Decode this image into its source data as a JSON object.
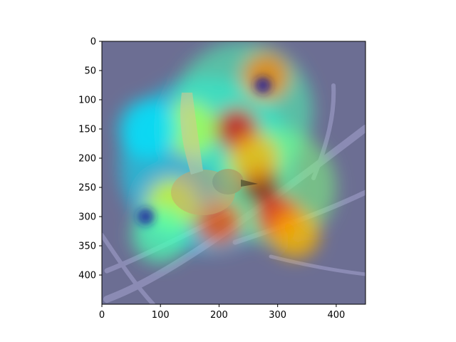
{
  "chart_data": {
    "type": "heatmap",
    "title": "",
    "xlabel": "",
    "ylabel": "",
    "xlim": [
      0,
      450
    ],
    "ylim": [
      450,
      0
    ],
    "x_ticks": [
      0,
      100,
      200,
      300,
      400
    ],
    "y_ticks": [
      0,
      50,
      100,
      150,
      200,
      250,
      300,
      350,
      400
    ],
    "grid": false,
    "colormap": "jet",
    "image_description_hidden": true,
    "overlay_hotspots": [
      {
        "x": 270,
        "y": 245,
        "level": 1.0
      },
      {
        "x": 230,
        "y": 150,
        "level": 0.9
      },
      {
        "x": 280,
        "y": 60,
        "level": 0.75
      },
      {
        "x": 300,
        "y": 300,
        "level": 0.85
      },
      {
        "x": 200,
        "y": 310,
        "level": 0.8
      },
      {
        "x": 120,
        "y": 280,
        "level": 0.6
      },
      {
        "x": 330,
        "y": 330,
        "level": 0.7
      },
      {
        "x": 150,
        "y": 150,
        "level": 0.55
      },
      {
        "x": 260,
        "y": 200,
        "level": 0.7
      },
      {
        "x": 100,
        "y": 330,
        "level": 0.45
      },
      {
        "x": 80,
        "y": 150,
        "level": 0.35
      }
    ],
    "cold_spots": [
      {
        "x": 75,
        "y": 300
      },
      {
        "x": 275,
        "y": 75
      }
    ]
  },
  "colors": {
    "background": "#ffffff",
    "axis": "#000000",
    "photo_base": "#5a5f86"
  }
}
